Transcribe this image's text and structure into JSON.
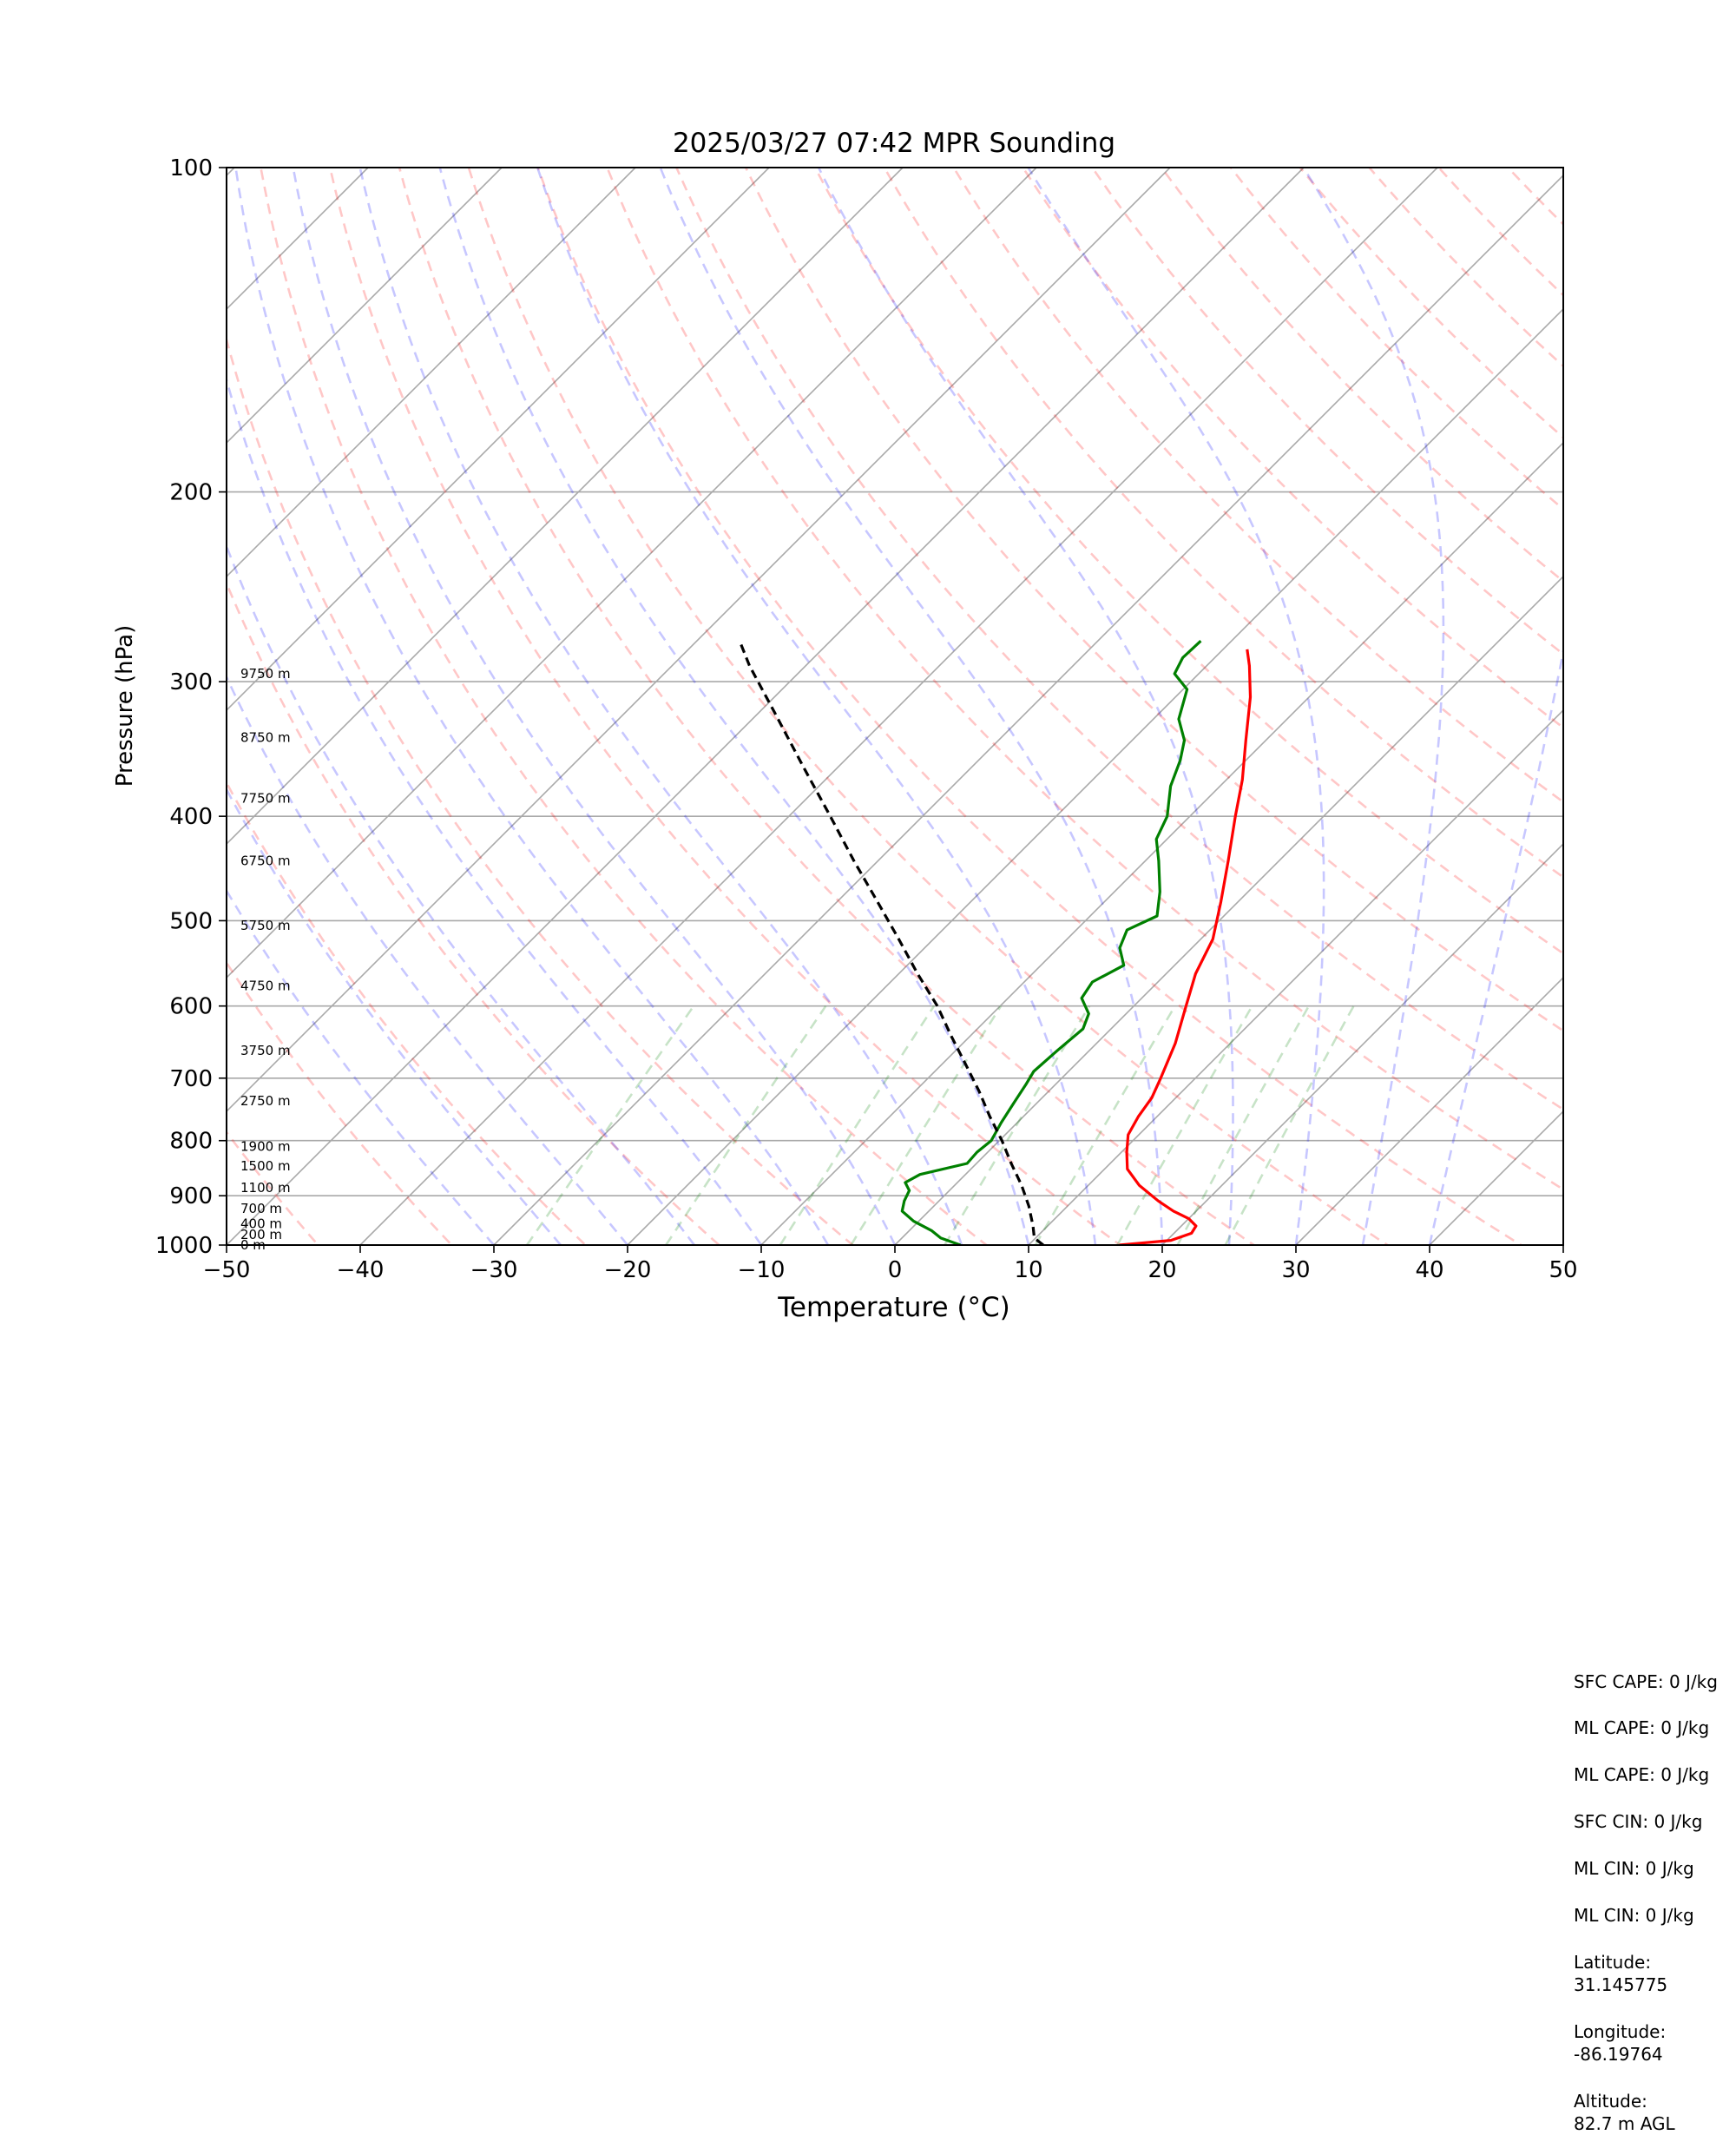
{
  "chart_data": {
    "type": "line",
    "title": "2025/03/27 07:42 MPR Sounding",
    "xlabel": "Temperature (°C)",
    "ylabel": "Pressure (hPa)",
    "xlim": [
      -50,
      50
    ],
    "ylim": [
      1000,
      100
    ],
    "y_scale": "log",
    "skew": true,
    "grid": true,
    "x_ticks": [
      "−50",
      "−40",
      "−30",
      "−20",
      "−10",
      "0",
      "10",
      "20",
      "30",
      "40",
      "50"
    ],
    "x_tick_values": [
      -50,
      -40,
      -30,
      -20,
      -10,
      0,
      10,
      20,
      30,
      40,
      50
    ],
    "y_ticks": [
      "100",
      "200",
      "300",
      "400",
      "500",
      "600",
      "700",
      "800",
      "900",
      "1000"
    ],
    "y_tick_values": [
      100,
      200,
      300,
      400,
      500,
      600,
      700,
      800,
      900,
      1000
    ],
    "height_labels": [
      {
        "p": 1000,
        "text": "0 m"
      },
      {
        "p": 978,
        "text": "200 m"
      },
      {
        "p": 956,
        "text": "400 m"
      },
      {
        "p": 925,
        "text": "700 m"
      },
      {
        "p": 885,
        "text": "1100 m"
      },
      {
        "p": 845,
        "text": "1500 m"
      },
      {
        "p": 810,
        "text": "1900 m"
      },
      {
        "p": 735,
        "text": "2750 m"
      },
      {
        "p": 660,
        "text": "3750 m"
      },
      {
        "p": 575,
        "text": "4750 m"
      },
      {
        "p": 505,
        "text": "5750 m"
      },
      {
        "p": 440,
        "text": "6750 m"
      },
      {
        "p": 385,
        "text": "7750 m"
      },
      {
        "p": 338,
        "text": "8750 m"
      },
      {
        "p": 295,
        "text": "9750 m"
      }
    ],
    "series": [
      {
        "role": "temperature",
        "color": "#ff0000",
        "points": [
          [
            1000,
            16.8
          ],
          [
            990,
            20.3
          ],
          [
            975,
            21.3
          ],
          [
            960,
            21.1
          ],
          [
            945,
            20.0
          ],
          [
            930,
            18.3
          ],
          [
            910,
            16.4
          ],
          [
            880,
            13.8
          ],
          [
            850,
            11.7
          ],
          [
            820,
            10.4
          ],
          [
            790,
            9.2
          ],
          [
            760,
            8.6
          ],
          [
            730,
            8.2
          ],
          [
            700,
            7.4
          ],
          [
            650,
            5.9
          ],
          [
            600,
            3.9
          ],
          [
            560,
            2.2
          ],
          [
            520,
            0.9
          ],
          [
            480,
            -1.3
          ],
          [
            440,
            -3.8
          ],
          [
            400,
            -6.6
          ],
          [
            370,
            -8.8
          ],
          [
            340,
            -11.5
          ],
          [
            310,
            -14.4
          ],
          [
            290,
            -16.8
          ],
          [
            280,
            -18.2
          ]
        ]
      },
      {
        "role": "dewpoint",
        "color": "#008000",
        "points": [
          [
            1000,
            4.9
          ],
          [
            985,
            2.9
          ],
          [
            970,
            1.7
          ],
          [
            950,
            -0.4
          ],
          [
            930,
            -2.0
          ],
          [
            910,
            -2.6
          ],
          [
            890,
            -3.0
          ],
          [
            875,
            -3.9
          ],
          [
            860,
            -3.4
          ],
          [
            840,
            -0.7
          ],
          [
            820,
            -0.8
          ],
          [
            800,
            -0.6
          ],
          [
            770,
            -1.2
          ],
          [
            740,
            -1.7
          ],
          [
            710,
            -2.2
          ],
          [
            690,
            -2.6
          ],
          [
            660,
            -2.4
          ],
          [
            630,
            -2.1
          ],
          [
            610,
            -2.8
          ],
          [
            590,
            -4.5
          ],
          [
            570,
            -4.9
          ],
          [
            550,
            -3.8
          ],
          [
            530,
            -5.4
          ],
          [
            510,
            -6.2
          ],
          [
            495,
            -5.0
          ],
          [
            470,
            -6.6
          ],
          [
            440,
            -9.0
          ],
          [
            420,
            -10.8
          ],
          [
            400,
            -11.7
          ],
          [
            375,
            -13.7
          ],
          [
            355,
            -14.9
          ],
          [
            340,
            -16.1
          ],
          [
            325,
            -18.1
          ],
          [
            305,
            -19.7
          ],
          [
            295,
            -21.8
          ],
          [
            285,
            -22.4
          ],
          [
            275,
            -22.3
          ]
        ]
      },
      {
        "role": "parcel",
        "color": "#000000",
        "dashed": true,
        "points": [
          [
            1000,
            11.1
          ],
          [
            985,
            9.9
          ],
          [
            960,
            8.9
          ],
          [
            920,
            7.1
          ],
          [
            880,
            5.0
          ],
          [
            840,
            2.6
          ],
          [
            800,
            0.2
          ],
          [
            760,
            -2.5
          ],
          [
            720,
            -5.2
          ],
          [
            680,
            -8.2
          ],
          [
            640,
            -11.4
          ],
          [
            600,
            -14.7
          ],
          [
            560,
            -18.6
          ],
          [
            520,
            -22.6
          ],
          [
            480,
            -27.0
          ],
          [
            440,
            -31.8
          ],
          [
            400,
            -36.9
          ],
          [
            360,
            -42.6
          ],
          [
            320,
            -48.9
          ],
          [
            290,
            -54.2
          ],
          [
            275,
            -56.8
          ]
        ]
      }
    ],
    "reference_lines": [
      "isotherms",
      "dry adiabats",
      "moist adiabats",
      "mixing ratio"
    ]
  },
  "info_panel": {
    "sfc_cape": "SFC CAPE: 0 J/kg",
    "ml_cape": "ML CAPE: 0 J/kg",
    "ml_cape_2": "ML CAPE: 0 J/kg",
    "sfc_cin": "SFC CIN: 0 J/kg",
    "ml_cin": "ML CIN: 0 J/kg",
    "ml_cin_2": "ML CIN: 0 J/kg",
    "latitude_label": "Latitude:",
    "latitude_value": "31.145775",
    "longitude_label": "Longitude:",
    "longitude_value": "-86.19764",
    "altitude_label": "Altitude:",
    "altitude_value": "82.7 m AGL"
  }
}
